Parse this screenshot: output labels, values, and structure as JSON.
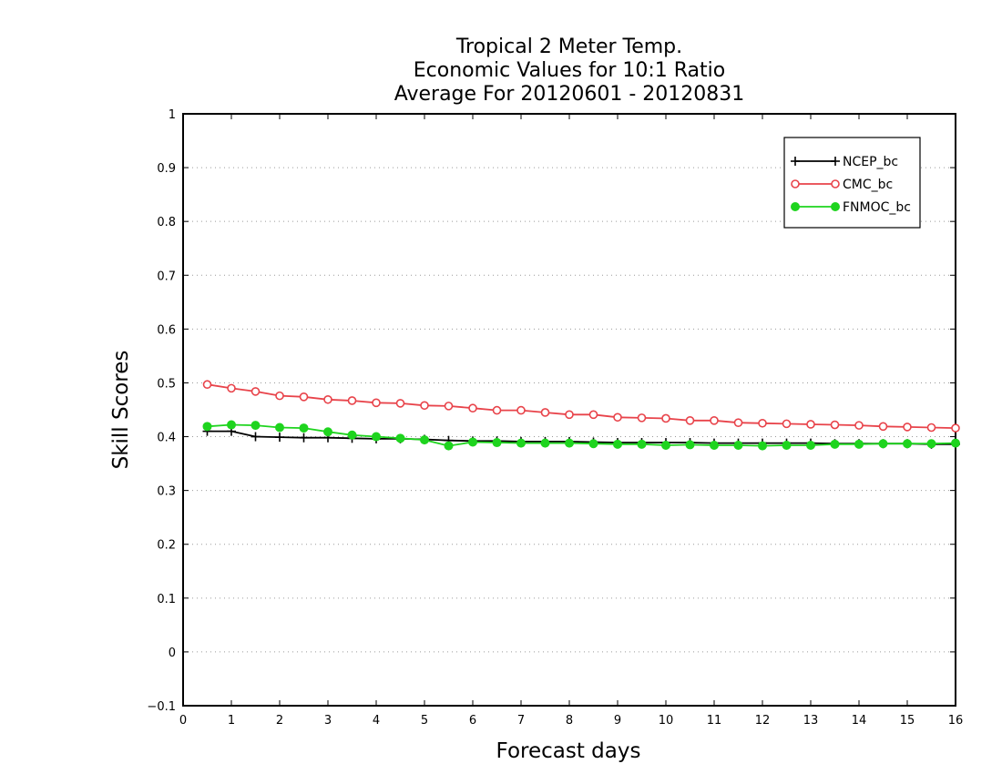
{
  "chart_data": {
    "type": "line",
    "title_lines": [
      "Tropical 2 Meter Temp.",
      "Economic Values for 10:1 Ratio",
      "Average For 20120601 - 20120831"
    ],
    "xlabel": "Forecast days",
    "ylabel": "Skill Scores",
    "xlim": [
      0,
      16
    ],
    "ylim": [
      -0.1,
      1
    ],
    "xticks": [
      "0",
      "1",
      "2",
      "3",
      "4",
      "5",
      "6",
      "7",
      "8",
      "9",
      "10",
      "11",
      "12",
      "13",
      "14",
      "15",
      "16"
    ],
    "yticks": [
      "−0.1",
      "0",
      "0.1",
      "0.2",
      "0.3",
      "0.4",
      "0.5",
      "0.6",
      "0.7",
      "0.8",
      "0.9",
      "1"
    ],
    "grid": "horizontal-dotted",
    "legend_position": "top-right",
    "x": [
      0.5,
      1,
      1.5,
      2,
      2.5,
      3,
      3.5,
      4,
      4.5,
      5,
      5.5,
      6,
      6.5,
      7,
      7.5,
      8,
      8.5,
      9,
      9.5,
      10,
      10.5,
      11,
      11.5,
      12,
      12.5,
      13,
      13.5,
      14,
      14.5,
      15,
      15.5,
      16
    ],
    "series": [
      {
        "name": "NCEP_bc",
        "color": "#000000",
        "marker": "plus",
        "values": [
          0.41,
          0.41,
          0.4,
          0.399,
          0.398,
          0.398,
          0.397,
          0.396,
          0.396,
          0.395,
          0.393,
          0.392,
          0.392,
          0.391,
          0.391,
          0.391,
          0.39,
          0.389,
          0.389,
          0.389,
          0.389,
          0.388,
          0.388,
          0.388,
          0.388,
          0.388,
          0.387,
          0.387,
          0.387,
          0.387,
          0.386,
          0.386
        ]
      },
      {
        "name": "CMC_bc",
        "color": "#e8434a",
        "marker": "open-circle",
        "values": [
          0.497,
          0.49,
          0.484,
          0.476,
          0.474,
          0.469,
          0.467,
          0.463,
          0.462,
          0.458,
          0.457,
          0.453,
          0.449,
          0.449,
          0.445,
          0.441,
          0.441,
          0.436,
          0.435,
          0.434,
          0.43,
          0.43,
          0.426,
          0.425,
          0.424,
          0.423,
          0.422,
          0.421,
          0.419,
          0.418,
          0.417,
          0.416
        ]
      },
      {
        "name": "FNMOC_bc",
        "color": "#1ed41e",
        "marker": "filled-circle",
        "values": [
          0.419,
          0.422,
          0.421,
          0.417,
          0.416,
          0.409,
          0.403,
          0.4,
          0.397,
          0.394,
          0.383,
          0.39,
          0.389,
          0.388,
          0.388,
          0.388,
          0.387,
          0.386,
          0.386,
          0.384,
          0.385,
          0.384,
          0.384,
          0.383,
          0.384,
          0.384,
          0.386,
          0.386,
          0.387,
          0.387,
          0.387,
          0.388
        ]
      }
    ]
  }
}
